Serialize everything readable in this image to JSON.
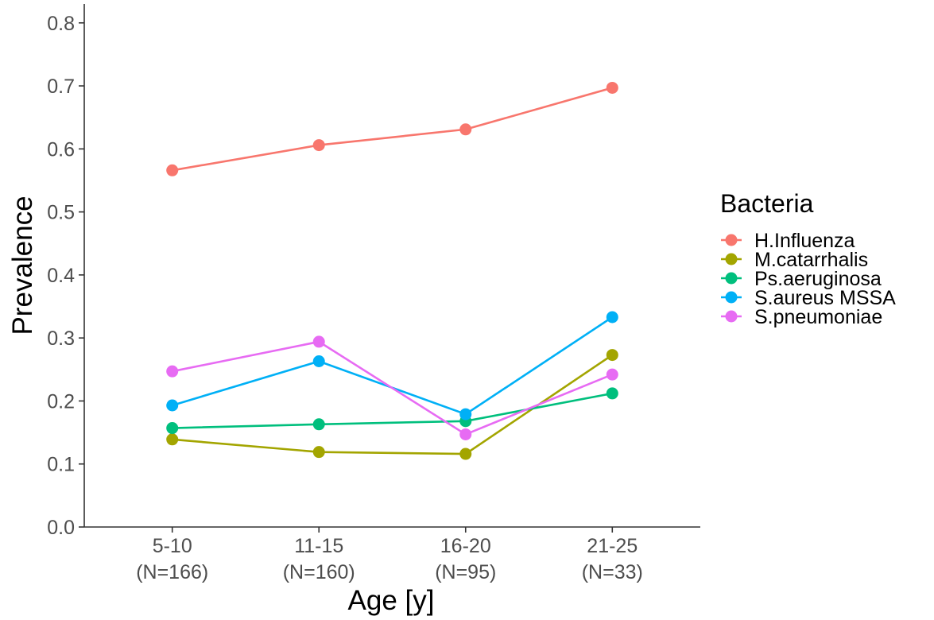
{
  "chart_data": {
    "type": "line",
    "x_categories": [
      {
        "label": "5-10",
        "n": "(N=166)"
      },
      {
        "label": "11-15",
        "n": "(N=160)"
      },
      {
        "label": "16-20",
        "n": "(N=95)"
      },
      {
        "label": "21-25",
        "n": "(N=33)"
      }
    ],
    "xlabel": "Age [y]",
    "ylabel": "Prevalence",
    "ylim": [
      0,
      0.83
    ],
    "y_ticks": [
      "0.0",
      "0.1",
      "0.2",
      "0.3",
      "0.4",
      "0.5",
      "0.6",
      "0.7",
      "0.8"
    ],
    "legend_title": "Bacteria",
    "legend_position": "right",
    "grid": false,
    "series": [
      {
        "name": "H.Influenza",
        "color": "#f8766d",
        "values": [
          0.566,
          0.606,
          0.631,
          0.697
        ]
      },
      {
        "name": "M.catarrhalis",
        "color": "#a3a500",
        "values": [
          0.139,
          0.119,
          0.116,
          0.273
        ]
      },
      {
        "name": "Ps.aeruginosa",
        "color": "#00bf7d",
        "values": [
          0.157,
          0.163,
          0.168,
          0.212
        ]
      },
      {
        "name": "S.aureus MSSA",
        "color": "#00b0f6",
        "values": [
          0.193,
          0.263,
          0.179,
          0.333
        ]
      },
      {
        "name": "S.pneumoniae",
        "color": "#e76bf3",
        "values": [
          0.247,
          0.294,
          0.147,
          0.242
        ]
      }
    ]
  }
}
